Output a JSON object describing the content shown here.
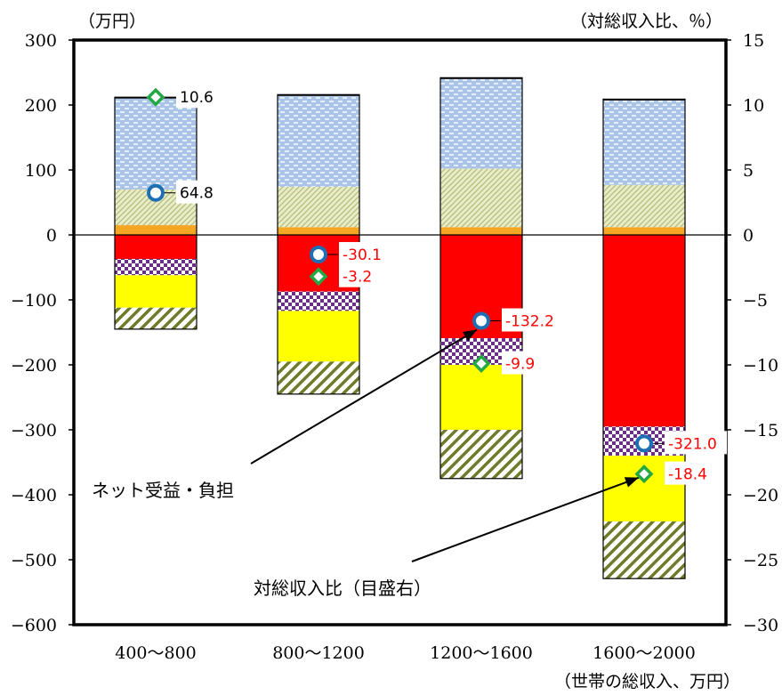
{
  "chart_data": {
    "type": "bar",
    "stacked": true,
    "categories": [
      "400～800",
      "800～1200",
      "1200～1600",
      "1600～2000"
    ],
    "y_left": {
      "unit_label": "（万円）",
      "min": -600,
      "max": 300,
      "ticks": [
        300,
        200,
        100,
        0,
        -100,
        -200,
        -300,
        -400,
        -500,
        -600
      ]
    },
    "y_right": {
      "unit_label": "（対総収入比、％）",
      "min": -30,
      "max": 15,
      "ticks": [
        15,
        10,
        5,
        0,
        -5,
        -10,
        -15,
        -20,
        -25,
        -30
      ]
    },
    "xlabel": "（世帯の総収入、万円）",
    "grid": false,
    "positive_segments": [
      {
        "pattern": "orange",
        "values": [
          15,
          12,
          12,
          12
        ]
      },
      {
        "pattern": "olive-hatch",
        "values": [
          55,
          62,
          90,
          65
        ]
      },
      {
        "pattern": "blue-dashed",
        "values": [
          140,
          140,
          138,
          130
        ]
      },
      {
        "pattern": "black-line",
        "values": [
          2,
          2,
          2,
          2
        ]
      }
    ],
    "negative_segments": [
      {
        "pattern": "red",
        "values": [
          -37,
          -87,
          -159,
          -295
        ]
      },
      {
        "pattern": "purple-check",
        "values": [
          -25,
          -30,
          -41,
          -45
        ]
      },
      {
        "pattern": "yellow",
        "values": [
          -50,
          -78,
          -100,
          -101
        ]
      },
      {
        "pattern": "olive-diagonal",
        "values": [
          -33,
          -50,
          -75,
          -88
        ]
      }
    ],
    "net_benefit_series": {
      "values": [
        64.8,
        -30.1,
        -132.2,
        -321.0
      ],
      "labels": [
        "64.8",
        "-30.1",
        "-132.2",
        "-321.0"
      ]
    },
    "ratio_series": {
      "values": [
        10.6,
        -3.2,
        -9.9,
        -18.4
      ],
      "labels": [
        "10.6",
        "-3.2",
        "-9.9",
        "-18.4"
      ]
    },
    "label_colors": {
      "positive": "#000000",
      "negative": "#ff0000"
    },
    "annotations": [
      {
        "text": "ネット受益・負担",
        "points_to": "1200～1600 net"
      },
      {
        "text": "対総収入比（目盛右）",
        "points_to": "1600～2000 ratio"
      }
    ]
  }
}
